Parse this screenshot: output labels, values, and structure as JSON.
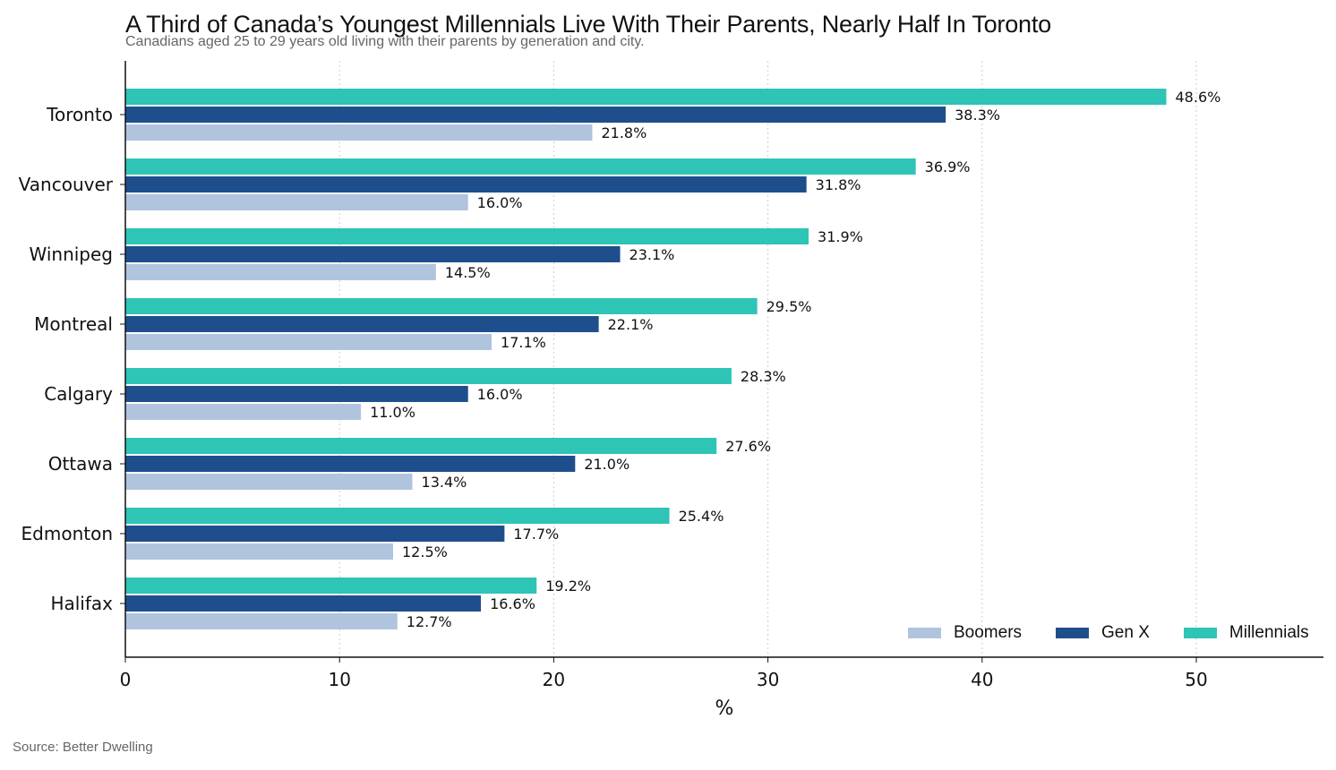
{
  "title": "A Third of Canada’s Youngest Millennials Live With Their Parents, Nearly Half In Toronto",
  "subtitle": "Canadians aged 25 to 29 years old living with their parents by generation and city.",
  "source": "Source: Better Dwelling",
  "chart_data": {
    "type": "bar",
    "orientation": "horizontal",
    "categories": [
      "Toronto",
      "Vancouver",
      "Winnipeg",
      "Montreal",
      "Calgary",
      "Ottawa",
      "Edmonton",
      "Halifax"
    ],
    "series": [
      {
        "name": "Millennials",
        "color": "#2ec4b6",
        "values": [
          48.6,
          36.9,
          31.9,
          29.5,
          28.3,
          27.6,
          25.4,
          19.2
        ],
        "labels": [
          "48.6%",
          "36.9%",
          "31.9%",
          "29.5%",
          "28.3%",
          "27.6%",
          "25.4%",
          "19.2%"
        ]
      },
      {
        "name": "Gen X",
        "color": "#1f4e8c",
        "values": [
          38.3,
          31.8,
          23.1,
          22.1,
          16.0,
          21.0,
          17.7,
          16.6
        ],
        "labels": [
          "38.3%",
          "31.8%",
          "23.1%",
          "22.1%",
          "16.0%",
          "21.0%",
          "17.7%",
          "16.6%"
        ]
      },
      {
        "name": "Boomers",
        "color": "#b0c4de",
        "values": [
          21.8,
          16.0,
          14.5,
          17.1,
          11.0,
          13.4,
          12.5,
          12.7
        ],
        "labels": [
          "21.8%",
          "16.0%",
          "14.5%",
          "17.1%",
          "11.0%",
          "13.4%",
          "12.5%",
          "12.7%"
        ]
      }
    ],
    "xlabel": "%",
    "ylabel": "",
    "xlim": [
      0,
      56
    ],
    "xticks": [
      0,
      10,
      20,
      30,
      40,
      50
    ],
    "grid": "vertical dotted",
    "legend": {
      "position": "bottom-right",
      "order": [
        "Boomers",
        "Gen X",
        "Millennials"
      ]
    }
  }
}
